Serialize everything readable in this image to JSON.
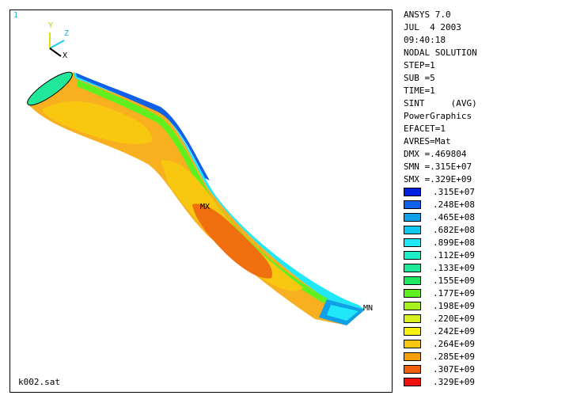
{
  "viewport": {
    "window_number": "1",
    "filename": "k002.sat",
    "mx_label": "MX",
    "mn_label": "MN",
    "triad": {
      "y": "Y",
      "z": "Z",
      "x": "X"
    }
  },
  "info_lines": [
    "ANSYS 7.0",
    "JUL  4 2003",
    "09:40:18",
    "NODAL SOLUTION",
    "STEP=1",
    "SUB =5",
    "TIME=1",
    "SINT     (AVG)",
    "PowerGraphics",
    "EFACET=1",
    "AVRES=Mat",
    "DMX =.469804",
    "SMN =.315E+07",
    "SMX =.329E+09"
  ],
  "legend": [
    {
      "value": ".315E+07",
      "color": "#0020e0"
    },
    {
      "value": ".248E+08",
      "color": "#1060e8"
    },
    {
      "value": ".465E+08",
      "color": "#10a0e8"
    },
    {
      "value": ".682E+08",
      "color": "#10c8f0"
    },
    {
      "value": ".899E+08",
      "color": "#20e8f8"
    },
    {
      "value": ".112E+09",
      "color": "#20f0c8"
    },
    {
      "value": ".133E+09",
      "color": "#20e898"
    },
    {
      "value": ".155E+09",
      "color": "#20e860"
    },
    {
      "value": ".177E+09",
      "color": "#60f020"
    },
    {
      "value": ".198E+09",
      "color": "#a8f020"
    },
    {
      "value": ".220E+09",
      "color": "#d8f020"
    },
    {
      "value": ".242E+09",
      "color": "#f8f010"
    },
    {
      "value": ".264E+09",
      "color": "#f8c810"
    },
    {
      "value": ".285E+09",
      "color": "#f8a008"
    },
    {
      "value": ".307E+09",
      "color": "#f06008"
    },
    {
      "value": ".329E+09",
      "color": "#f01010"
    }
  ]
}
